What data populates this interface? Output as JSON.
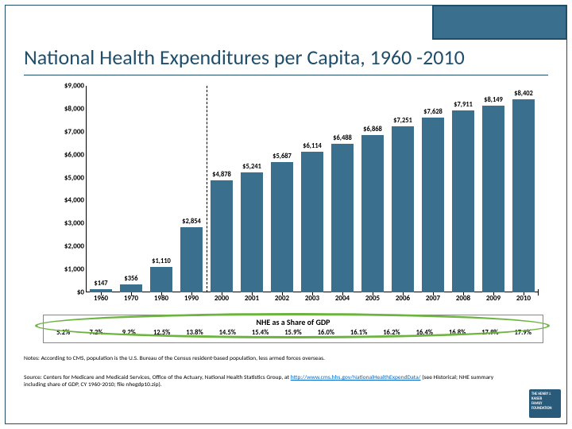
{
  "title": "National Health Expenditures per Capita, 1960 -2010",
  "chart": {
    "type": "bar",
    "ymax": 9000,
    "ytick_step": 1000,
    "y_prefix": "$",
    "bar_color": "#3a6f8e",
    "years": [
      "1960",
      "1970",
      "1980",
      "1990",
      "2000",
      "2001",
      "2002",
      "2003",
      "2004",
      "2005",
      "2006",
      "2007",
      "2008",
      "2009",
      "2010"
    ],
    "values": [
      147,
      356,
      1110,
      2854,
      4878,
      5241,
      5687,
      6114,
      6488,
      6868,
      7251,
      7628,
      7911,
      8149,
      8402
    ],
    "value_labels": [
      "$147",
      "$356",
      "$1,110",
      "$2,854",
      "$4,878",
      "$5,241",
      "$5,687",
      "$6,114",
      "$6,488",
      "$6,868",
      "$7,251",
      "$7,628",
      "$7,911",
      "$8,149",
      "$8,402"
    ],
    "separator_after_index": 3
  },
  "gdp": {
    "title": "NHE as a Share of GDP",
    "values": [
      "5.2%",
      "7.2%",
      "9.2%",
      "12.5%",
      "13.8%",
      "14.5%",
      "15.4%",
      "15.9%",
      "16.0%",
      "16.1%",
      "16.2%",
      "16.4%",
      "16.8%",
      "17.9%",
      "17.9%"
    ]
  },
  "notes_line1": "Notes: According to CMS, population is the U.S. Bureau of the Census resident-based population, less armed forces overseas.",
  "source_pre": "Source: Centers for Medicare and Medicaid Services, Office of the Actuary, National Health Statistics Group, at ",
  "source_link": "http://www.cms.hhs.gov/NationalHealthExpendData/",
  "source_post": " (see Historical; NHE summary including share of GDP, CY 1960-2010; file nhegdp10.zip)."
}
